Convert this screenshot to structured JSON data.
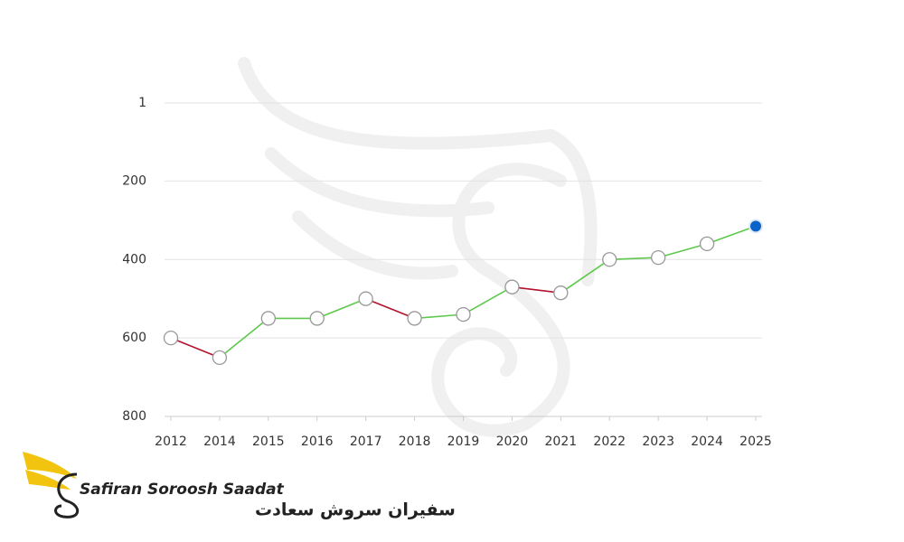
{
  "chart_data": {
    "type": "line",
    "categories": [
      "2012",
      "2014",
      "2015",
      "2016",
      "2017",
      "2018",
      "2019",
      "2020",
      "2021",
      "2022",
      "2023",
      "2024",
      "2025"
    ],
    "values": [
      600,
      650,
      550,
      550,
      500,
      550,
      540,
      470,
      485,
      400,
      395,
      360,
      315
    ],
    "ylim": [
      1,
      800
    ],
    "y_inverted": true,
    "yticks": [
      1,
      200,
      400,
      600,
      800
    ],
    "grid": true,
    "improve_color": "#5cc94a",
    "decline_color": "#b0142c",
    "highlight_color": "#0a64c8"
  },
  "logo": {
    "name": "Safiran Soroosh Saadat",
    "name_fa": "سفیران سروش سعادت"
  }
}
